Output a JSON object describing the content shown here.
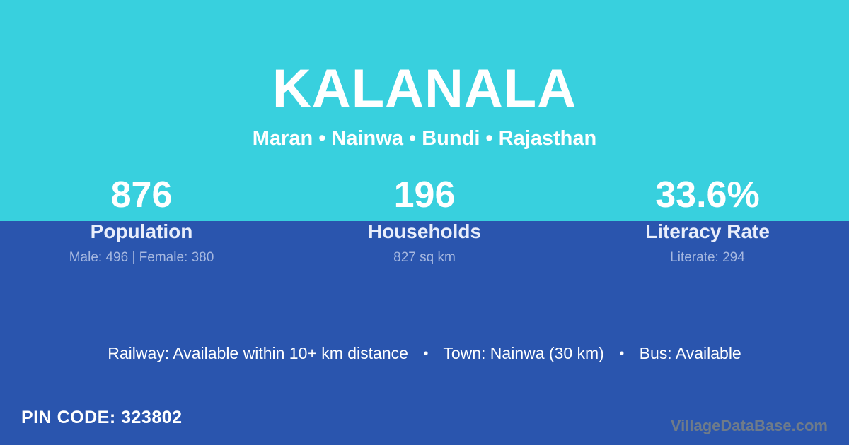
{
  "header": {
    "title": "KALANALA",
    "subtitle": "Maran • Nainwa • Bundi • Rajasthan"
  },
  "stats": [
    {
      "value": "876",
      "label": "Population",
      "detail": "Male: 496 | Female: 380"
    },
    {
      "value": "196",
      "label": "Households",
      "detail": "827 sq km"
    },
    {
      "value": "33.6%",
      "label": "Literacy Rate",
      "detail": "Literate: 294"
    }
  ],
  "transport": {
    "separator": "•",
    "items": [
      "Railway: Available within 10+ km distance",
      "Town: Nainwa (30 km)",
      "Bus: Available"
    ]
  },
  "footer": {
    "pin_code": "PIN CODE: 323802",
    "watermark": "VillageDataBase.com"
  },
  "colors": {
    "cyan": "#38d0de",
    "blue": "#2a55ae",
    "text_white": "#ffffff",
    "label_light": "#e9eefb",
    "detail_muted": "#a6b8e0",
    "watermark_gray": "#6f7b89"
  }
}
